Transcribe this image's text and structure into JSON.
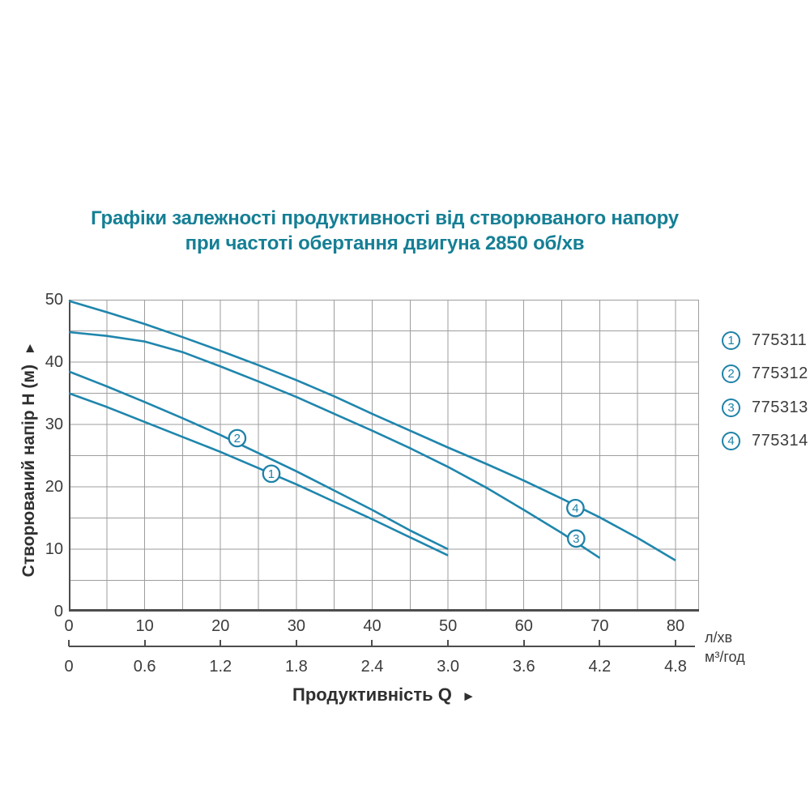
{
  "title": {
    "line1": "Графіки залежності продуктивності від створюваного напору",
    "line2": "при частоті обертання двигуна 2850 об/хв"
  },
  "axes": {
    "y_label": "Створюваний напір Н (м)",
    "y_arrow": "►",
    "x_label": "Продуктивність  Q",
    "x_arrow": "►",
    "unit_primary": "л/хв",
    "unit_secondary": "м³/год"
  },
  "legend": {
    "items": [
      {
        "num": "1",
        "model": "775311"
      },
      {
        "num": "2",
        "model": "775312"
      },
      {
        "num": "3",
        "model": "775313"
      },
      {
        "num": "4",
        "model": "775314"
      }
    ]
  },
  "chart_data": {
    "type": "line",
    "title": "Графіки залежності продуктивності від створюваного напору при частоті обертання двигуна 2850 об/хв",
    "xlabel": "Продуктивність Q",
    "ylabel": "Створюваний напір Н (м)",
    "x_unit_primary": "л/хв",
    "x_unit_secondary": "м³/год",
    "xlim": [
      0,
      83.1
    ],
    "ylim": [
      0,
      50
    ],
    "grid": true,
    "grid_step_x": 5,
    "grid_step_y": 5,
    "x_ticks_lmin": [
      0,
      10,
      20,
      30,
      40,
      50,
      60,
      70,
      80
    ],
    "x_ticks_m3h": [
      "0",
      "0.6",
      "1.2",
      "1.8",
      "2.4",
      "3.0",
      "3.6",
      "4.2",
      "4.8"
    ],
    "y_ticks": [
      0,
      10,
      20,
      30,
      40,
      50
    ],
    "legend_position": "right",
    "series": [
      {
        "num": "1",
        "name": "775311",
        "points": [
          [
            0,
            35
          ],
          [
            5,
            32.8
          ],
          [
            10,
            30.4
          ],
          [
            15,
            28.0
          ],
          [
            20,
            25.6
          ],
          [
            25,
            23.0
          ],
          [
            30,
            20.4
          ],
          [
            35,
            17.6
          ],
          [
            40,
            14.8
          ],
          [
            45,
            11.9
          ],
          [
            50,
            9.0
          ]
        ],
        "label_at": [
          26.7,
          22.1
        ]
      },
      {
        "num": "2",
        "name": "775312",
        "points": [
          [
            0,
            38.5
          ],
          [
            5,
            36.1
          ],
          [
            10,
            33.6
          ],
          [
            15,
            31.0
          ],
          [
            20,
            28.3
          ],
          [
            25,
            25.4
          ],
          [
            30,
            22.5
          ],
          [
            35,
            19.4
          ],
          [
            40,
            16.3
          ],
          [
            45,
            13.0
          ],
          [
            50,
            10.0
          ]
        ],
        "label_at": [
          22.2,
          27.8
        ]
      },
      {
        "num": "3",
        "name": "775313",
        "points": [
          [
            0,
            44.8
          ],
          [
            5,
            44.2
          ],
          [
            10,
            43.3
          ],
          [
            15,
            41.6
          ],
          [
            20,
            39.3
          ],
          [
            25,
            36.9
          ],
          [
            30,
            34.4
          ],
          [
            35,
            31.7
          ],
          [
            40,
            29.0
          ],
          [
            45,
            26.2
          ],
          [
            50,
            23.2
          ],
          [
            55,
            19.9
          ],
          [
            60,
            16.3
          ],
          [
            65,
            12.6
          ],
          [
            70,
            8.6
          ]
        ],
        "label_at": [
          66.9,
          11.7
        ]
      },
      {
        "num": "4",
        "name": "775314",
        "points": [
          [
            0,
            49.8
          ],
          [
            5,
            48.0
          ],
          [
            10,
            46.1
          ],
          [
            15,
            44.0
          ],
          [
            20,
            41.8
          ],
          [
            25,
            39.5
          ],
          [
            30,
            37.1
          ],
          [
            35,
            34.5
          ],
          [
            40,
            31.7
          ],
          [
            45,
            29.0
          ],
          [
            50,
            26.3
          ],
          [
            55,
            23.7
          ],
          [
            60,
            21.0
          ],
          [
            65,
            18.1
          ],
          [
            70,
            15.1
          ],
          [
            75,
            11.8
          ],
          [
            80,
            8.2
          ]
        ],
        "label_at": [
          66.8,
          16.6
        ]
      }
    ],
    "colors": {
      "curve": "#1f86ad",
      "grid": "#9e9e9e",
      "axis": "#4d4d4d",
      "title": "#157f95",
      "text": "#3b3b3b",
      "marker_ring": "#1e82a8"
    }
  }
}
